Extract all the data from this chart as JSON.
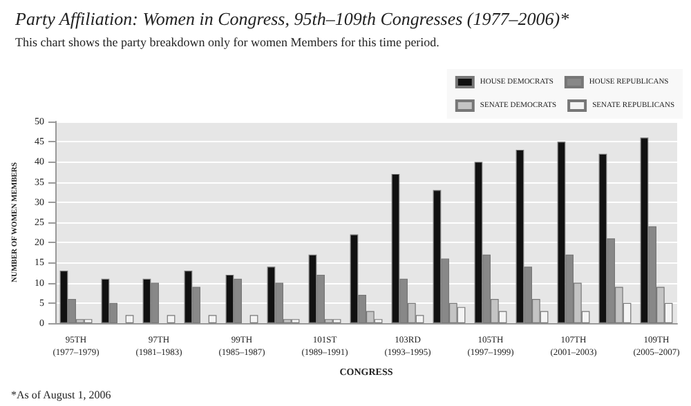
{
  "chart_data": {
    "type": "bar",
    "title": "Party Affiliation: Women in Congress, 95th–109th Congresses (1977–2006)*",
    "subtitle": "This chart shows the party breakdown only for women Members for this time period.",
    "xlabel": "CONGRESS",
    "ylabel": "NUMBER OF WOMEN MEMBERS",
    "categories": [
      "95TH\n(1977–1979)",
      null,
      "97TH\n(1981–1983)",
      null,
      "99TH\n(1985–1987)",
      null,
      "101ST\n(1989–1991)",
      null,
      "103RD\n(1993–1995)",
      null,
      "105TH\n(1997–1999)",
      null,
      "107TH\n(2001–2003)",
      null,
      "109TH\n(2005–2007)"
    ],
    "series": [
      {
        "name": "HOUSE DEMOCRATS",
        "color": "#111111",
        "values": [
          13,
          11,
          11,
          13,
          12,
          14,
          17,
          22,
          37,
          33,
          40,
          43,
          45,
          42,
          46
        ]
      },
      {
        "name": "HOUSE REPUBLICANS",
        "color": "#888888",
        "values": [
          6,
          5,
          10,
          9,
          11,
          10,
          12,
          7,
          11,
          16,
          17,
          14,
          17,
          21,
          24
        ]
      },
      {
        "name": "SENATE DEMOCRATS",
        "color": "#c4c4c4",
        "values": [
          1,
          0,
          0,
          0,
          0,
          1,
          1,
          3,
          5,
          5,
          6,
          6,
          10,
          9,
          9
        ]
      },
      {
        "name": "SENATE REPUBLICANS",
        "color": "#f4f4f4",
        "values": [
          1,
          2,
          2,
          2,
          2,
          1,
          1,
          1,
          2,
          4,
          3,
          3,
          3,
          5,
          5
        ]
      }
    ],
    "ylim": [
      0,
      50
    ],
    "yticks": [
      0,
      5,
      10,
      15,
      20,
      25,
      30,
      35,
      40,
      45,
      50
    ],
    "grid": "y",
    "legend": "top right",
    "annotations": [
      "*As of August 1, 2006"
    ]
  }
}
